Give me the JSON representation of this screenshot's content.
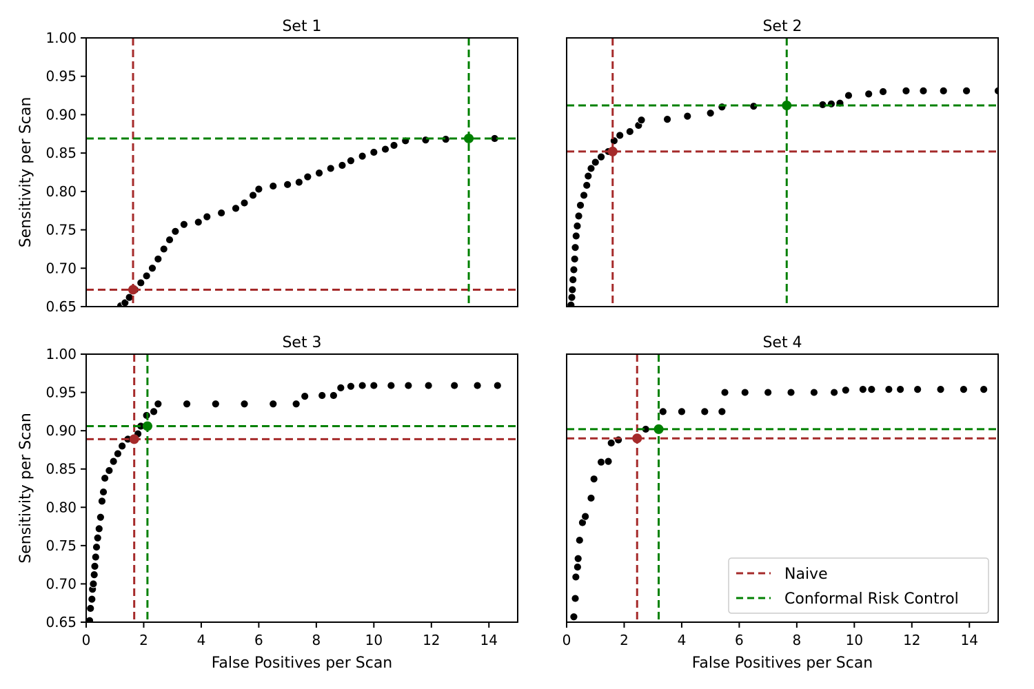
{
  "colors": {
    "naive": "#a52a2a",
    "crc": "#008000",
    "points": "#000000",
    "point_edge": "#ffffff"
  },
  "legend": {
    "naive_label": "Naive",
    "crc_label": "Conformal Risk Control"
  },
  "axes_labels": {
    "xlabel": "False Positives per Scan",
    "ylabel": "Sensitivity per Scan"
  },
  "chart_data": [
    {
      "type": "scatter",
      "title": "Set 1",
      "xlim": [
        0,
        15
      ],
      "ylim": [
        0.65,
        1.0
      ],
      "xticks": [],
      "yticks": [
        "1.00",
        "0.95",
        "0.90",
        "0.85",
        "0.80",
        "0.75",
        "0.70",
        "0.65"
      ],
      "xlabel": "",
      "ylabel": "Sensitivity per Scan",
      "naive": {
        "x": 1.63,
        "y": 0.672
      },
      "crc": {
        "x": 13.3,
        "y": 0.869
      },
      "curve": [
        [
          1.2,
          0.651
        ],
        [
          1.35,
          0.655
        ],
        [
          1.5,
          0.662
        ],
        [
          1.7,
          0.672
        ],
        [
          1.9,
          0.681
        ],
        [
          2.1,
          0.69
        ],
        [
          2.3,
          0.7
        ],
        [
          2.5,
          0.712
        ],
        [
          2.7,
          0.725
        ],
        [
          2.9,
          0.737
        ],
        [
          3.1,
          0.748
        ],
        [
          3.4,
          0.757
        ],
        [
          3.9,
          0.76
        ],
        [
          4.2,
          0.767
        ],
        [
          4.7,
          0.772
        ],
        [
          5.2,
          0.778
        ],
        [
          5.5,
          0.785
        ],
        [
          5.8,
          0.795
        ],
        [
          6.0,
          0.803
        ],
        [
          6.5,
          0.807
        ],
        [
          7.0,
          0.809
        ],
        [
          7.4,
          0.812
        ],
        [
          7.7,
          0.819
        ],
        [
          8.1,
          0.824
        ],
        [
          8.5,
          0.83
        ],
        [
          8.9,
          0.834
        ],
        [
          9.2,
          0.84
        ],
        [
          9.6,
          0.846
        ],
        [
          10.0,
          0.851
        ],
        [
          10.4,
          0.855
        ],
        [
          10.7,
          0.86
        ],
        [
          11.1,
          0.866
        ],
        [
          11.8,
          0.867
        ],
        [
          12.5,
          0.868
        ],
        [
          13.3,
          0.869
        ],
        [
          14.2,
          0.869
        ]
      ]
    },
    {
      "type": "scatter",
      "title": "Set 2",
      "xlim": [
        0,
        15
      ],
      "ylim": [
        0.65,
        1.0
      ],
      "xticks": [],
      "yticks": [],
      "xlabel": "",
      "ylabel": "",
      "naive": {
        "x": 1.6,
        "y": 0.852
      },
      "crc": {
        "x": 7.65,
        "y": 0.912
      },
      "curve": [
        [
          0.15,
          0.652
        ],
        [
          0.18,
          0.662
        ],
        [
          0.2,
          0.672
        ],
        [
          0.22,
          0.685
        ],
        [
          0.25,
          0.698
        ],
        [
          0.28,
          0.712
        ],
        [
          0.3,
          0.727
        ],
        [
          0.33,
          0.742
        ],
        [
          0.37,
          0.755
        ],
        [
          0.42,
          0.768
        ],
        [
          0.48,
          0.782
        ],
        [
          0.6,
          0.795
        ],
        [
          0.7,
          0.808
        ],
        [
          0.75,
          0.82
        ],
        [
          0.85,
          0.83
        ],
        [
          1.0,
          0.838
        ],
        [
          1.2,
          0.845
        ],
        [
          1.45,
          0.852
        ],
        [
          1.65,
          0.866
        ],
        [
          1.85,
          0.873
        ],
        [
          2.2,
          0.878
        ],
        [
          2.5,
          0.886
        ],
        [
          2.6,
          0.893
        ],
        [
          3.5,
          0.894
        ],
        [
          4.2,
          0.898
        ],
        [
          5.0,
          0.902
        ],
        [
          5.4,
          0.91
        ],
        [
          6.5,
          0.911
        ],
        [
          7.65,
          0.912
        ],
        [
          8.9,
          0.913
        ],
        [
          9.2,
          0.914
        ],
        [
          9.5,
          0.915
        ],
        [
          9.8,
          0.925
        ],
        [
          10.5,
          0.927
        ],
        [
          11.0,
          0.93
        ],
        [
          11.8,
          0.931
        ],
        [
          12.4,
          0.931
        ],
        [
          13.1,
          0.931
        ],
        [
          13.9,
          0.931
        ],
        [
          15.0,
          0.931
        ]
      ]
    },
    {
      "type": "scatter",
      "title": "Set 3",
      "xlim": [
        0,
        15
      ],
      "ylim": [
        0.65,
        1.0
      ],
      "xticks": [
        "0",
        "2",
        "4",
        "6",
        "8",
        "10",
        "12",
        "14"
      ],
      "yticks": [
        "1.00",
        "0.95",
        "0.90",
        "0.85",
        "0.80",
        "0.75",
        "0.70",
        "0.65"
      ],
      "xlabel": "False Positives per Scan",
      "ylabel": "Sensitivity per Scan",
      "naive": {
        "x": 1.67,
        "y": 0.889
      },
      "crc": {
        "x": 2.13,
        "y": 0.906
      },
      "curve": [
        [
          0.12,
          0.652
        ],
        [
          0.15,
          0.668
        ],
        [
          0.2,
          0.68
        ],
        [
          0.22,
          0.693
        ],
        [
          0.25,
          0.7
        ],
        [
          0.28,
          0.712
        ],
        [
          0.3,
          0.723
        ],
        [
          0.33,
          0.735
        ],
        [
          0.36,
          0.748
        ],
        [
          0.4,
          0.76
        ],
        [
          0.45,
          0.772
        ],
        [
          0.5,
          0.787
        ],
        [
          0.55,
          0.808
        ],
        [
          0.6,
          0.82
        ],
        [
          0.65,
          0.838
        ],
        [
          0.8,
          0.848
        ],
        [
          0.95,
          0.86
        ],
        [
          1.1,
          0.87
        ],
        [
          1.25,
          0.88
        ],
        [
          1.45,
          0.889
        ],
        [
          1.8,
          0.896
        ],
        [
          1.9,
          0.906
        ],
        [
          2.1,
          0.92
        ],
        [
          2.35,
          0.925
        ],
        [
          2.5,
          0.935
        ],
        [
          3.5,
          0.935
        ],
        [
          4.5,
          0.935
        ],
        [
          5.5,
          0.935
        ],
        [
          6.5,
          0.935
        ],
        [
          7.3,
          0.935
        ],
        [
          7.6,
          0.945
        ],
        [
          8.2,
          0.946
        ],
        [
          8.6,
          0.946
        ],
        [
          8.85,
          0.956
        ],
        [
          9.2,
          0.958
        ],
        [
          9.6,
          0.959
        ],
        [
          10.0,
          0.959
        ],
        [
          10.6,
          0.959
        ],
        [
          11.2,
          0.959
        ],
        [
          11.9,
          0.959
        ],
        [
          12.8,
          0.959
        ],
        [
          13.6,
          0.959
        ],
        [
          14.3,
          0.959
        ]
      ]
    },
    {
      "type": "scatter",
      "title": "Set 4",
      "xlim": [
        0,
        15
      ],
      "ylim": [
        0.65,
        1.0
      ],
      "xticks": [
        "0",
        "2",
        "4",
        "6",
        "8",
        "10",
        "12",
        "14"
      ],
      "yticks": [],
      "xlabel": "False Positives per Scan",
      "ylabel": "",
      "naive": {
        "x": 2.45,
        "y": 0.89
      },
      "crc": {
        "x": 3.2,
        "y": 0.902
      },
      "curve": [
        [
          0.25,
          0.657
        ],
        [
          0.3,
          0.681
        ],
        [
          0.32,
          0.709
        ],
        [
          0.38,
          0.722
        ],
        [
          0.4,
          0.733
        ],
        [
          0.45,
          0.757
        ],
        [
          0.55,
          0.78
        ],
        [
          0.65,
          0.788
        ],
        [
          0.85,
          0.812
        ],
        [
          0.95,
          0.837
        ],
        [
          1.2,
          0.859
        ],
        [
          1.45,
          0.86
        ],
        [
          1.55,
          0.884
        ],
        [
          1.8,
          0.888
        ],
        [
          2.45,
          0.89
        ],
        [
          2.75,
          0.902
        ],
        [
          3.2,
          0.902
        ],
        [
          3.35,
          0.925
        ],
        [
          4.0,
          0.925
        ],
        [
          4.8,
          0.925
        ],
        [
          5.4,
          0.925
        ],
        [
          5.5,
          0.95
        ],
        [
          6.2,
          0.95
        ],
        [
          7.0,
          0.95
        ],
        [
          7.8,
          0.95
        ],
        [
          8.6,
          0.95
        ],
        [
          9.3,
          0.95
        ],
        [
          9.7,
          0.953
        ],
        [
          10.3,
          0.954
        ],
        [
          10.6,
          0.954
        ],
        [
          11.2,
          0.954
        ],
        [
          11.6,
          0.954
        ],
        [
          12.2,
          0.954
        ],
        [
          13.0,
          0.954
        ],
        [
          13.8,
          0.954
        ],
        [
          14.5,
          0.954
        ]
      ]
    }
  ]
}
